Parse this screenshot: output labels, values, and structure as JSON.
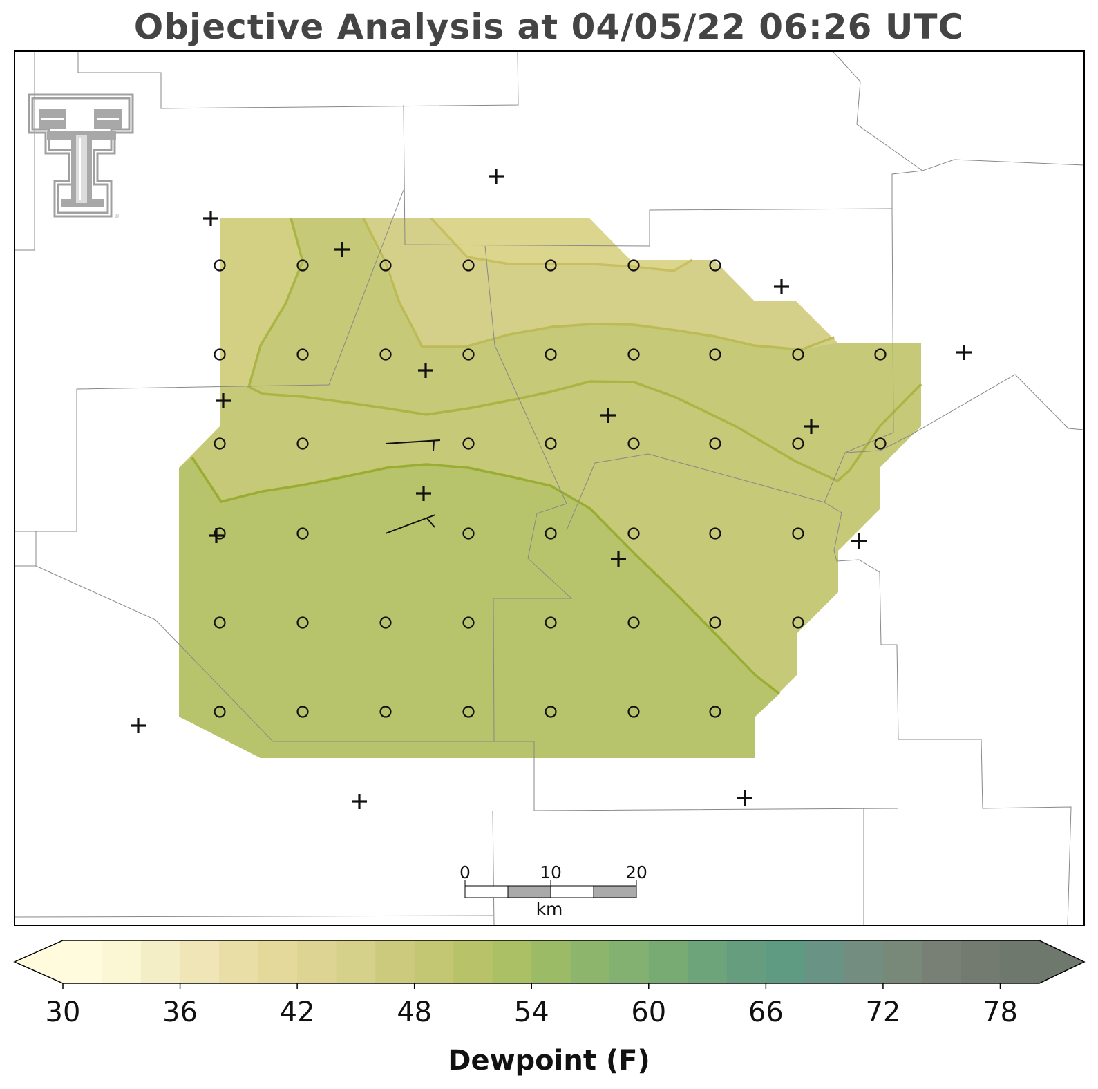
{
  "title": "Objective Analysis at 04/05/22 06:26 UTC",
  "colorbar": {
    "label": "Dewpoint (F)",
    "ticks": [
      "30",
      "36",
      "42",
      "48",
      "54",
      "60",
      "66",
      "72",
      "78"
    ],
    "min": 30,
    "max": 80,
    "step": 2,
    "colors": [
      "#fffbdc",
      "#fbf6d3",
      "#f4eec6",
      "#efe5b7",
      "#e9dea6",
      "#e4d99a",
      "#ddd493",
      "#d5d08a",
      "#cccb7d",
      "#c3c673",
      "#b8c269",
      "#abbf65",
      "#9cbb66",
      "#8db66c",
      "#82b172",
      "#78aa74",
      "#6da479",
      "#669d7f",
      "#5f9a82",
      "#699385",
      "#738e80",
      "#788979",
      "#787f75",
      "#737a6f",
      "#6e786c"
    ],
    "under_color": "#fffbdc",
    "over_color": "#6e786c"
  },
  "scalebar": {
    "labels": [
      "0",
      "10",
      "20"
    ],
    "unit": "km"
  },
  "field": {
    "band_colors": {
      "46-48": "#d6d188",
      "48-50": "#c6c977",
      "50-52": "#b8c46c"
    },
    "contour_colors": {
      "46": "#c5bf5e",
      "48": "#afb84a",
      "50": "#9aae32"
    }
  },
  "logo": {
    "name": "Texas Tech Double T",
    "color": "#a0a0a0"
  }
}
